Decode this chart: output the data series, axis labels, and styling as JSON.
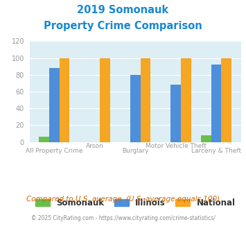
{
  "title_line1": "2019 Somonauk",
  "title_line2": "Property Crime Comparison",
  "categories": [
    "All Property Crime",
    "Arson",
    "Burglary",
    "Motor Vehicle Theft",
    "Larceny & Theft"
  ],
  "somonauk": [
    6,
    0,
    0,
    0,
    8
  ],
  "illinois": [
    88,
    0,
    80,
    68,
    92
  ],
  "national": [
    100,
    100,
    100,
    100,
    100
  ],
  "somonauk_color": "#6abf4b",
  "illinois_color": "#4d8fda",
  "national_color": "#f5a623",
  "ylim": [
    0,
    120
  ],
  "yticks": [
    0,
    20,
    40,
    60,
    80,
    100,
    120
  ],
  "bg_color": "#ddeef4",
  "fig_bg": "#ffffff",
  "title_color": "#1a88d0",
  "xlabel_color": "#999999",
  "ylabel_color": "#999999",
  "footnote1": "Compared to U.S. average. (U.S. average equals 100)",
  "footnote2": "© 2025 CityRating.com - https://www.cityrating.com/crime-statistics/",
  "footnote1_color": "#cc6600",
  "footnote2_color": "#888888",
  "legend_text_color": "#333333"
}
